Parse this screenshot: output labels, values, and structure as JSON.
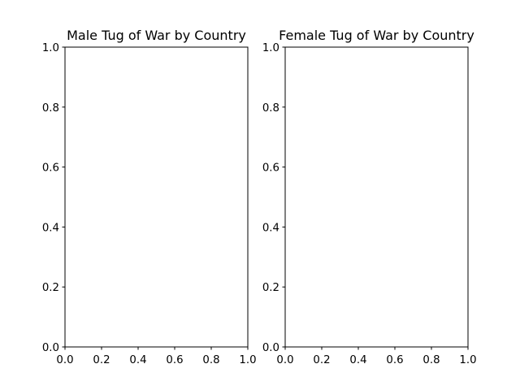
{
  "chart_data": [
    {
      "type": "bar",
      "title": "Male Tug of War by Country",
      "xlabel": "",
      "ylabel": "",
      "xlim": [
        0,
        1
      ],
      "ylim": [
        0,
        1
      ],
      "xticks": [
        "0.0",
        "0.2",
        "0.4",
        "0.6",
        "0.8",
        "1.0"
      ],
      "yticks": [
        "0.0",
        "0.2",
        "0.4",
        "0.6",
        "0.8",
        "1.0"
      ],
      "grid": false,
      "categories": [],
      "values": []
    },
    {
      "type": "bar",
      "title": "Female Tug of War by Country",
      "xlabel": "",
      "ylabel": "",
      "xlim": [
        0,
        1
      ],
      "ylim": [
        0,
        1
      ],
      "xticks": [
        "0.0",
        "0.2",
        "0.4",
        "0.6",
        "0.8",
        "1.0"
      ],
      "yticks": [
        "0.0",
        "0.2",
        "0.4",
        "0.6",
        "0.8",
        "1.0"
      ],
      "grid": false,
      "categories": [],
      "values": []
    }
  ]
}
